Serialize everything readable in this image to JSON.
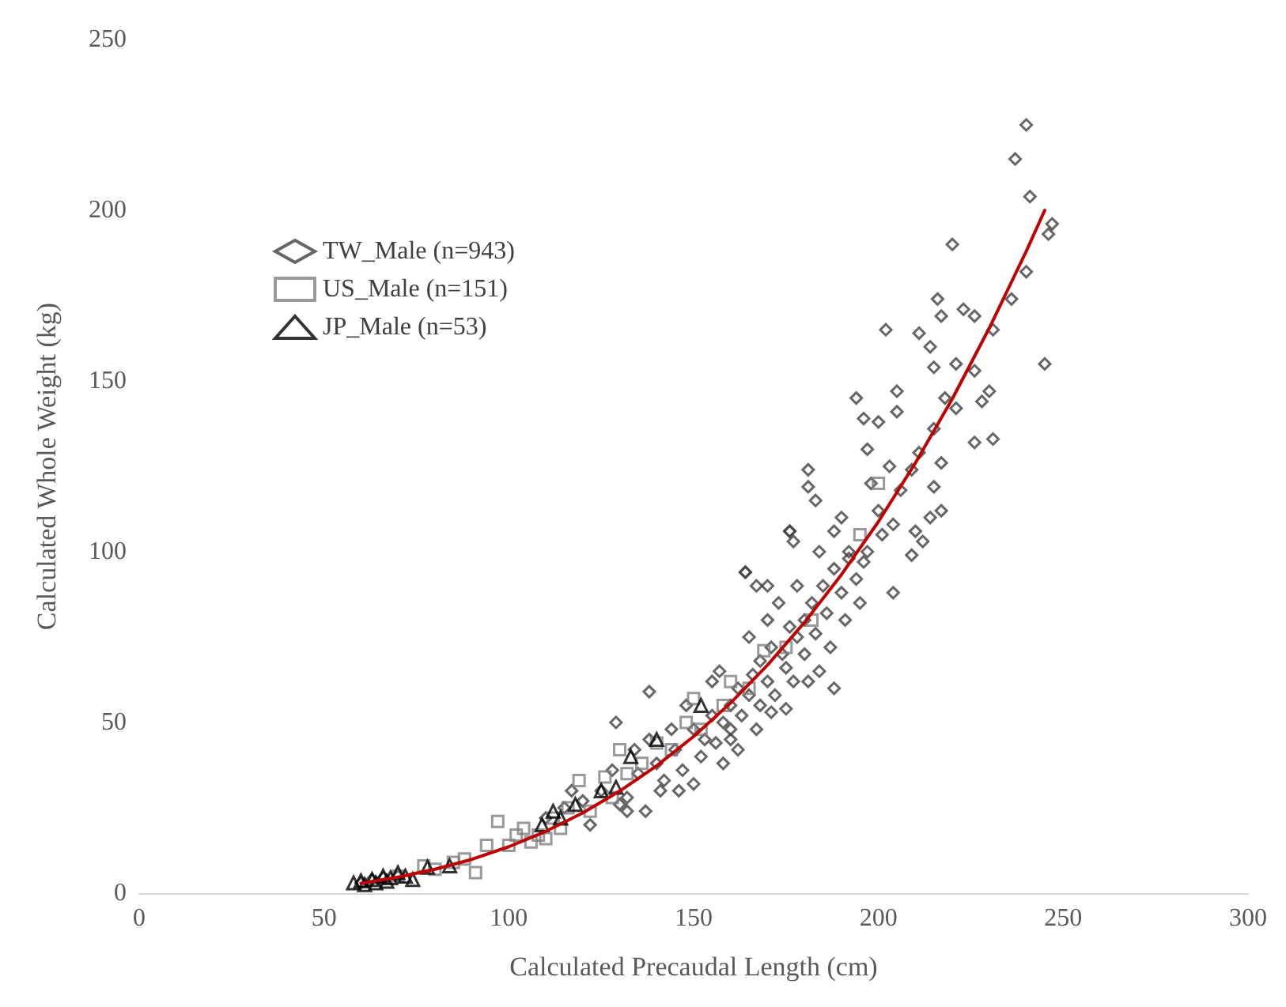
{
  "chart_data": {
    "type": "scatter",
    "xlabel": "Calculated Precaudal Length (cm)",
    "ylabel": "Calculated Whole Weight (kg)",
    "xlim": [
      0,
      300
    ],
    "xticks": [
      0,
      50,
      100,
      150,
      200,
      250,
      300
    ],
    "ylim": [
      0,
      250
    ],
    "yticks": [
      0,
      50,
      100,
      150,
      200,
      250
    ],
    "grid": false,
    "legend": "top left",
    "series": [
      {
        "name": "TW_Male (n=943)",
        "color": "#404040",
        "marker": "diamond",
        "x": [
          240,
          237,
          241,
          247,
          246,
          220,
          240,
          236,
          245,
          216,
          217,
          223,
          226,
          202,
          211,
          231,
          214,
          215,
          221,
          226,
          230,
          205,
          194,
          196,
          205,
          218,
          228,
          221,
          200,
          215,
          231,
          226,
          197,
          211,
          217,
          181,
          181,
          183,
          198,
          209,
          215,
          217,
          214,
          210,
          212,
          209,
          204,
          201,
          197,
          188,
          176,
          177,
          164,
          167,
          170,
          192,
          196,
          204,
          129,
          132,
          137,
          141,
          160,
          171,
          164,
          138,
          184,
          176,
          140,
          142,
          145,
          147,
          150,
          152,
          153,
          155,
          156,
          158,
          160,
          160,
          162,
          163,
          165,
          166,
          168,
          168,
          170,
          171,
          172,
          174,
          175,
          176,
          177,
          178,
          180,
          180,
          182,
          183,
          185,
          186,
          187,
          188,
          190,
          191,
          192,
          194,
          195,
          148,
          146,
          144,
          158,
          162,
          135,
          132,
          130,
          128,
          125,
          138,
          155,
          165,
          170,
          173,
          178,
          184,
          190,
          200,
          203,
          206,
          110,
          115,
          120,
          122,
          117,
          134,
          150,
          157,
          167,
          175,
          181,
          188,
          60,
          63,
          66,
          70
        ],
        "values": [
          225,
          215,
          204,
          196,
          193,
          190,
          182,
          174,
          155,
          174,
          169,
          171,
          169,
          165,
          164,
          165,
          160,
          154,
          155,
          153,
          147,
          147,
          145,
          139,
          141,
          145,
          144,
          142,
          138,
          136,
          133,
          132,
          130,
          129,
          126,
          124,
          119,
          115,
          120,
          124,
          119,
          112,
          110,
          106,
          103,
          99,
          108,
          105,
          100,
          106,
          106,
          103,
          94,
          90,
          90,
          98,
          97,
          88,
          50,
          24,
          24,
          30,
          45,
          53,
          94,
          59,
          65,
          106,
          38,
          33,
          42,
          36,
          48,
          40,
          45,
          52,
          44,
          50,
          55,
          48,
          60,
          52,
          58,
          64,
          55,
          68,
          62,
          72,
          58,
          70,
          66,
          78,
          62,
          75,
          80,
          70,
          85,
          76,
          90,
          82,
          72,
          95,
          88,
          80,
          100,
          92,
          85,
          55,
          30,
          48,
          38,
          42,
          35,
          28,
          26,
          36,
          30,
          45,
          62,
          75,
          80,
          85,
          90,
          100,
          110,
          112,
          125,
          118,
          22,
          25,
          27,
          20,
          30,
          42,
          32,
          65,
          48,
          54,
          62,
          60,
          3,
          4,
          4.5,
          5
        ]
      },
      {
        "name": "US_Male (n=151)",
        "color": "#7f7f7f",
        "marker": "square",
        "x": [
          77,
          80,
          85,
          88,
          91,
          94,
          97,
          100,
          102,
          104,
          106,
          108,
          110,
          112,
          114,
          116,
          119,
          122,
          126,
          128,
          130,
          132,
          136,
          140,
          144,
          148,
          150,
          152,
          158,
          160,
          165,
          169,
          175,
          182,
          195,
          200,
          70
        ],
        "values": [
          8,
          7,
          9,
          10,
          6,
          14,
          21,
          14,
          17,
          19,
          15,
          17,
          16,
          22,
          19,
          25,
          33,
          24,
          34,
          28,
          42,
          35,
          38,
          44,
          42,
          50,
          57,
          48,
          55,
          62,
          60,
          71,
          72,
          80,
          105,
          120,
          5
        ]
      },
      {
        "name": "JP_Male (n=53)",
        "color": "#000000",
        "marker": "triangle",
        "x": [
          58,
          60,
          61,
          63,
          64,
          66,
          67,
          68,
          70,
          72,
          74,
          78,
          84,
          109,
          112,
          114,
          118,
          125,
          129,
          133,
          140,
          152
        ],
        "values": [
          3,
          3.6,
          2.5,
          4,
          3,
          5,
          3.5,
          4.5,
          6,
          5,
          4,
          7.6,
          8,
          20,
          24,
          22,
          26,
          30,
          31,
          40,
          45,
          55
        ]
      },
      {
        "type": "line",
        "color": "#c00000",
        "marker": "none",
        "x": [
          60,
          70,
          80,
          90,
          100,
          110,
          120,
          130,
          140,
          150,
          160,
          170,
          180,
          190,
          200,
          210,
          220,
          230,
          240,
          245
        ],
        "values": [
          2.9,
          4.7,
          7,
          9.9,
          13.6,
          18.1,
          23.5,
          29.9,
          37.3,
          45.9,
          55.7,
          66.8,
          79.3,
          93.3,
          108.8,
          126,
          144.8,
          165.5,
          188,
          200
        ]
      }
    ]
  }
}
